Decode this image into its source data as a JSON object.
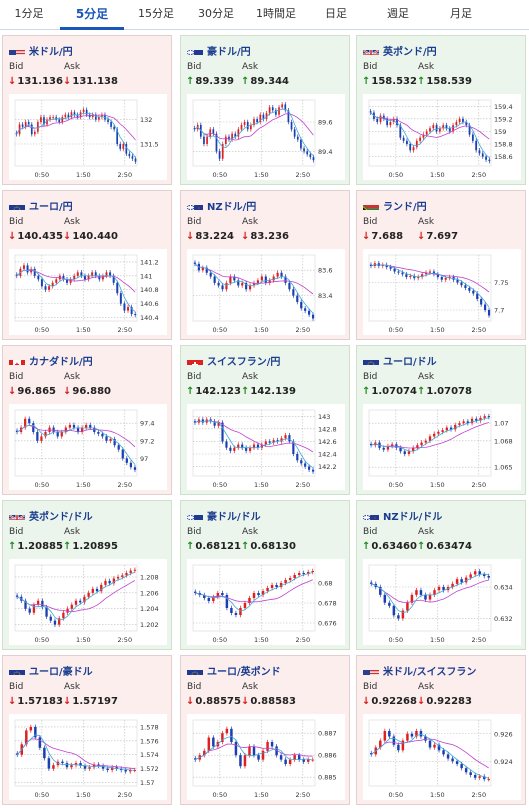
{
  "tabs": [
    {
      "label": "1分足",
      "active": false
    },
    {
      "label": "5分足",
      "active": true
    },
    {
      "label": "15分足",
      "active": false
    },
    {
      "label": "30分足",
      "active": false
    },
    {
      "label": "1時間足",
      "active": false
    },
    {
      "label": "日足",
      "active": false
    },
    {
      "label": "週足",
      "active": false
    },
    {
      "label": "月足",
      "active": false
    }
  ],
  "labels": {
    "bid": "Bid",
    "ask": "Ask"
  },
  "colors": {
    "down_bg": "#fdeeee",
    "up_bg": "#ecf5ec",
    "down": "#d81b1b",
    "up": "#1f8a1f",
    "link": "#1a3d8f"
  },
  "pairs": [
    {
      "name": "米ドル/円",
      "flag": "us",
      "trend": "down",
      "bid": "131.136",
      "ask": "131.138"
    },
    {
      "name": "豪ドル/円",
      "flag": "au",
      "trend": "up",
      "bid": "89.339",
      "ask": "89.344"
    },
    {
      "name": "英ポンド/円",
      "flag": "gb",
      "trend": "up",
      "bid": "158.532",
      "ask": "158.539"
    },
    {
      "name": "ユーロ/円",
      "flag": "eu",
      "trend": "down",
      "bid": "140.435",
      "ask": "140.440"
    },
    {
      "name": "NZドル/円",
      "flag": "nz",
      "trend": "down",
      "bid": "83.224",
      "ask": "83.236"
    },
    {
      "name": "ランド/円",
      "flag": "za",
      "trend": "down",
      "bid": "7.688",
      "ask": "7.697"
    },
    {
      "name": "カナダドル/円",
      "flag": "ca",
      "trend": "down",
      "bid": "96.865",
      "ask": "96.880"
    },
    {
      "name": "スイスフラン/円",
      "flag": "ch",
      "trend": "up",
      "bid": "142.123",
      "ask": "142.139"
    },
    {
      "name": "ユーロ/ドル",
      "flag": "eu",
      "trend": "up",
      "bid": "1.07074",
      "ask": "1.07078"
    },
    {
      "name": "英ポンド/ドル",
      "flag": "gb",
      "trend": "up",
      "bid": "1.20885",
      "ask": "1.20895"
    },
    {
      "name": "豪ドル/ドル",
      "flag": "au",
      "trend": "up",
      "bid": "0.68121",
      "ask": "0.68130"
    },
    {
      "name": "NZドル/ドル",
      "flag": "nz",
      "trend": "up",
      "bid": "0.63460",
      "ask": "0.63474"
    },
    {
      "name": "ユーロ/豪ドル",
      "flag": "eu",
      "trend": "down",
      "bid": "1.57183",
      "ask": "1.57197"
    },
    {
      "name": "ユーロ/英ポンド",
      "flag": "eu",
      "trend": "down",
      "bid": "0.88575",
      "ask": "0.88583"
    },
    {
      "name": "米ドル/スイスフラン",
      "flag": "us",
      "trend": "down",
      "bid": "0.92268",
      "ask": "0.92283"
    }
  ],
  "chart_data": [
    {
      "type": "candlestick",
      "pair": "米ドル/円",
      "x_ticks": [
        "0:50",
        "1:50",
        "2:50"
      ],
      "y_ticks": [
        131.5,
        132
      ],
      "ylim": [
        131.05,
        132.4
      ],
      "close": [
        131.7,
        131.9,
        131.85,
        131.95,
        131.9,
        131.7,
        131.75,
        131.95,
        132.05,
        131.9,
        132.0,
        132.05,
        132.05,
        132.0,
        131.95,
        132.05,
        132.1,
        132.05,
        132.15,
        132.1,
        132.05,
        132.15,
        132.2,
        132.1,
        132.05,
        132.1,
        132.0,
        132.05,
        132.1,
        132.0,
        131.95,
        131.85,
        131.8,
        131.5,
        131.4,
        131.5,
        131.3,
        131.25,
        131.2,
        131.14
      ]
    },
    {
      "type": "candlestick",
      "pair": "豪ドル/円",
      "x_ticks": [
        "0:50",
        "1:50",
        "2:50"
      ],
      "y_ticks": [
        89.4,
        89.6
      ],
      "ylim": [
        89.3,
        89.75
      ],
      "close": [
        89.55,
        89.58,
        89.5,
        89.45,
        89.5,
        89.55,
        89.52,
        89.4,
        89.35,
        89.45,
        89.5,
        89.48,
        89.52,
        89.5,
        89.55,
        89.58,
        89.6,
        89.55,
        89.58,
        89.62,
        89.6,
        89.65,
        89.62,
        89.66,
        89.7,
        89.68,
        89.65,
        89.7,
        89.72,
        89.68,
        89.6,
        89.55,
        89.5,
        89.48,
        89.42,
        89.4,
        89.38,
        89.36,
        89.34
      ]
    },
    {
      "type": "candlestick",
      "pair": "英ポンド/円",
      "x_ticks": [
        "0:50",
        "1:50",
        "2:50"
      ],
      "y_ticks": [
        158.6,
        158.8,
        159,
        159.2,
        159.4
      ],
      "ylim": [
        158.45,
        159.5
      ],
      "close": [
        159.3,
        159.2,
        159.15,
        159.25,
        159.2,
        159.1,
        159.15,
        159.2,
        159.1,
        158.9,
        158.85,
        158.8,
        158.7,
        158.75,
        158.85,
        158.9,
        158.95,
        159.0,
        159.05,
        159.1,
        159.0,
        159.05,
        159.1,
        159.05,
        159.0,
        159.1,
        159.15,
        159.2,
        159.15,
        159.1,
        158.95,
        158.85,
        158.7,
        158.65,
        158.6,
        158.55,
        158.53
      ]
    },
    {
      "type": "candlestick",
      "pair": "ユーロ/円",
      "x_ticks": [
        "0:50",
        "1:50",
        "2:50"
      ],
      "y_ticks": [
        140.4,
        140.6,
        140.8,
        141,
        141.2
      ],
      "ylim": [
        140.35,
        141.3
      ],
      "close": [
        141.0,
        141.1,
        141.15,
        141.05,
        141.1,
        141.0,
        140.95,
        140.85,
        140.8,
        140.85,
        140.9,
        140.95,
        141.0,
        140.95,
        140.9,
        140.95,
        141.0,
        141.05,
        141.0,
        140.95,
        141.0,
        141.05,
        141.0,
        140.95,
        141.0,
        141.05,
        141.0,
        140.9,
        140.75,
        140.6,
        140.5,
        140.55,
        140.45,
        140.44
      ]
    },
    {
      "type": "candlestick",
      "pair": "NZドル/円",
      "x_ticks": [
        "0:50",
        "1:50",
        "2:50"
      ],
      "y_ticks": [
        83.4,
        83.6
      ],
      "ylim": [
        83.2,
        83.72
      ],
      "close": [
        83.65,
        83.6,
        83.62,
        83.58,
        83.55,
        83.5,
        83.48,
        83.45,
        83.5,
        83.55,
        83.52,
        83.48,
        83.5,
        83.45,
        83.48,
        83.5,
        83.52,
        83.55,
        83.5,
        83.52,
        83.55,
        83.58,
        83.55,
        83.5,
        83.45,
        83.4,
        83.35,
        83.3,
        83.28,
        83.25,
        83.22
      ]
    },
    {
      "type": "candlestick",
      "pair": "ランド/円",
      "x_ticks": [
        "0:50",
        "1:50",
        "2:50"
      ],
      "y_ticks": [
        7.7,
        7.75
      ],
      "ylim": [
        7.68,
        7.8
      ],
      "close": [
        7.78,
        7.785,
        7.78,
        7.782,
        7.778,
        7.775,
        7.77,
        7.768,
        7.765,
        7.76,
        7.762,
        7.758,
        7.76,
        7.765,
        7.768,
        7.77,
        7.765,
        7.76,
        7.755,
        7.758,
        7.76,
        7.755,
        7.75,
        7.745,
        7.74,
        7.735,
        7.73,
        7.72,
        7.71,
        7.7,
        7.69
      ]
    },
    {
      "type": "candlestick",
      "pair": "カナダドル/円",
      "x_ticks": [
        "0:50",
        "1:50",
        "2:50"
      ],
      "y_ticks": [
        97,
        97.2,
        97.4
      ],
      "ylim": [
        96.8,
        97.55
      ],
      "close": [
        97.3,
        97.35,
        97.45,
        97.4,
        97.3,
        97.2,
        97.25,
        97.3,
        97.35,
        97.3,
        97.25,
        97.3,
        97.35,
        97.38,
        97.35,
        97.3,
        97.35,
        97.38,
        97.35,
        97.3,
        97.28,
        97.25,
        97.2,
        97.22,
        97.15,
        97.1,
        97.0,
        96.95,
        96.9,
        96.87
      ]
    },
    {
      "type": "candlestick",
      "pair": "スイスフラン/円",
      "x_ticks": [
        "0:50",
        "1:50",
        "2:50"
      ],
      "y_ticks": [
        142.2,
        142.4,
        142.6,
        142.8,
        143
      ],
      "ylim": [
        142.05,
        143.1
      ],
      "close": [
        142.9,
        142.95,
        142.9,
        142.95,
        142.92,
        142.85,
        142.9,
        142.6,
        142.5,
        142.45,
        142.5,
        142.55,
        142.5,
        142.45,
        142.5,
        142.55,
        142.5,
        142.55,
        142.6,
        142.58,
        142.62,
        142.6,
        142.65,
        142.7,
        142.6,
        142.4,
        142.3,
        142.25,
        142.2,
        142.15,
        142.12
      ]
    },
    {
      "type": "candlestick",
      "pair": "ユーロ/ドル",
      "x_ticks": [
        "0:50",
        "1:50",
        "2:50"
      ],
      "y_ticks": [
        1.065,
        1.068,
        1.07
      ],
      "ylim": [
        1.064,
        1.0715
      ],
      "close": [
        1.0675,
        1.0678,
        1.0672,
        1.067,
        1.0674,
        1.0676,
        1.0672,
        1.0668,
        1.0665,
        1.0668,
        1.0672,
        1.0675,
        1.0678,
        1.068,
        1.0685,
        1.0688,
        1.069,
        1.0692,
        1.0695,
        1.0693,
        1.0698,
        1.07,
        1.0702,
        1.07,
        1.0705,
        1.0703,
        1.0706,
        1.0708,
        1.0707
      ]
    },
    {
      "type": "candlestick",
      "pair": "英ポンド/ドル",
      "x_ticks": [
        "0:50",
        "1:50",
        "2:50"
      ],
      "y_ticks": [
        1.202,
        1.204,
        1.206,
        1.208
      ],
      "ylim": [
        1.2012,
        1.2095
      ],
      "close": [
        1.2055,
        1.205,
        1.204,
        1.2035,
        1.2045,
        1.205,
        1.2042,
        1.203,
        1.2025,
        1.202,
        1.2028,
        1.2035,
        1.204,
        1.2045,
        1.205,
        1.2048,
        1.2055,
        1.206,
        1.2065,
        1.2062,
        1.207,
        1.2075,
        1.2072,
        1.2078,
        1.208,
        1.2082,
        1.2085,
        1.2088,
        1.2089
      ]
    },
    {
      "type": "candlestick",
      "pair": "豪ドル/ドル",
      "x_ticks": [
        "0:50",
        "1:50",
        "2:50"
      ],
      "y_ticks": [
        0.676,
        0.678,
        0.68
      ],
      "ylim": [
        0.6752,
        0.6818
      ],
      "close": [
        0.679,
        0.6788,
        0.6785,
        0.6782,
        0.6786,
        0.679,
        0.6788,
        0.6775,
        0.677,
        0.6768,
        0.6775,
        0.678,
        0.6785,
        0.679,
        0.6788,
        0.6792,
        0.6795,
        0.6798,
        0.6796,
        0.68,
        0.6803,
        0.6805,
        0.6808,
        0.681,
        0.6809,
        0.6811,
        0.6812
      ]
    },
    {
      "type": "candlestick",
      "pair": "NZドル/ドル",
      "x_ticks": [
        "0:50",
        "1:50",
        "2:50"
      ],
      "y_ticks": [
        0.632,
        0.634
      ],
      "ylim": [
        0.6312,
        0.6354
      ],
      "close": [
        0.6342,
        0.634,
        0.6335,
        0.633,
        0.6328,
        0.6322,
        0.632,
        0.6325,
        0.633,
        0.6335,
        0.6338,
        0.6335,
        0.6332,
        0.6335,
        0.6338,
        0.634,
        0.6338,
        0.634,
        0.6342,
        0.6345,
        0.6343,
        0.6346,
        0.6348,
        0.635,
        0.6348,
        0.6347,
        0.6346
      ]
    },
    {
      "type": "candlestick",
      "pair": "ユーロ/豪ドル",
      "x_ticks": [
        "0:50",
        "1:50",
        "2:50"
      ],
      "y_ticks": [
        1.57,
        1.572,
        1.574,
        1.576,
        1.578
      ],
      "ylim": [
        1.5695,
        1.579
      ],
      "close": [
        1.574,
        1.5755,
        1.5775,
        1.578,
        1.5765,
        1.575,
        1.5735,
        1.572,
        1.5725,
        1.573,
        1.5728,
        1.5722,
        1.5725,
        1.5728,
        1.5724,
        1.572,
        1.5722,
        1.5726,
        1.5724,
        1.572,
        1.5718,
        1.5722,
        1.572,
        1.5718,
        1.5716,
        1.5718,
        1.5718
      ]
    },
    {
      "type": "candlestick",
      "pair": "ユーロ/英ポンド",
      "x_ticks": [
        "0:50",
        "1:50",
        "2:50"
      ],
      "y_ticks": [
        0.885,
        0.886,
        0.887
      ],
      "ylim": [
        0.8846,
        0.8876
      ],
      "close": [
        0.8858,
        0.886,
        0.8862,
        0.8868,
        0.8864,
        0.8866,
        0.887,
        0.8872,
        0.8866,
        0.886,
        0.8855,
        0.886,
        0.8864,
        0.886,
        0.8858,
        0.8862,
        0.8866,
        0.8864,
        0.886,
        0.8858,
        0.8856,
        0.8858,
        0.886,
        0.8858,
        0.8857,
        0.8858,
        0.8858
      ]
    },
    {
      "type": "candlestick",
      "pair": "米ドル/スイスフラン",
      "x_ticks": [
        "0:50",
        "1:50",
        "2:50"
      ],
      "y_ticks": [
        0.924,
        0.926
      ],
      "ylim": [
        0.9222,
        0.927
      ],
      "close": [
        0.9245,
        0.925,
        0.9255,
        0.9262,
        0.9258,
        0.9252,
        0.9248,
        0.9255,
        0.926,
        0.9258,
        0.9262,
        0.9258,
        0.9255,
        0.925,
        0.9252,
        0.9248,
        0.9245,
        0.9242,
        0.924,
        0.9238,
        0.9235,
        0.9232,
        0.923,
        0.9228,
        0.9229,
        0.9227,
        0.9227
      ]
    }
  ]
}
